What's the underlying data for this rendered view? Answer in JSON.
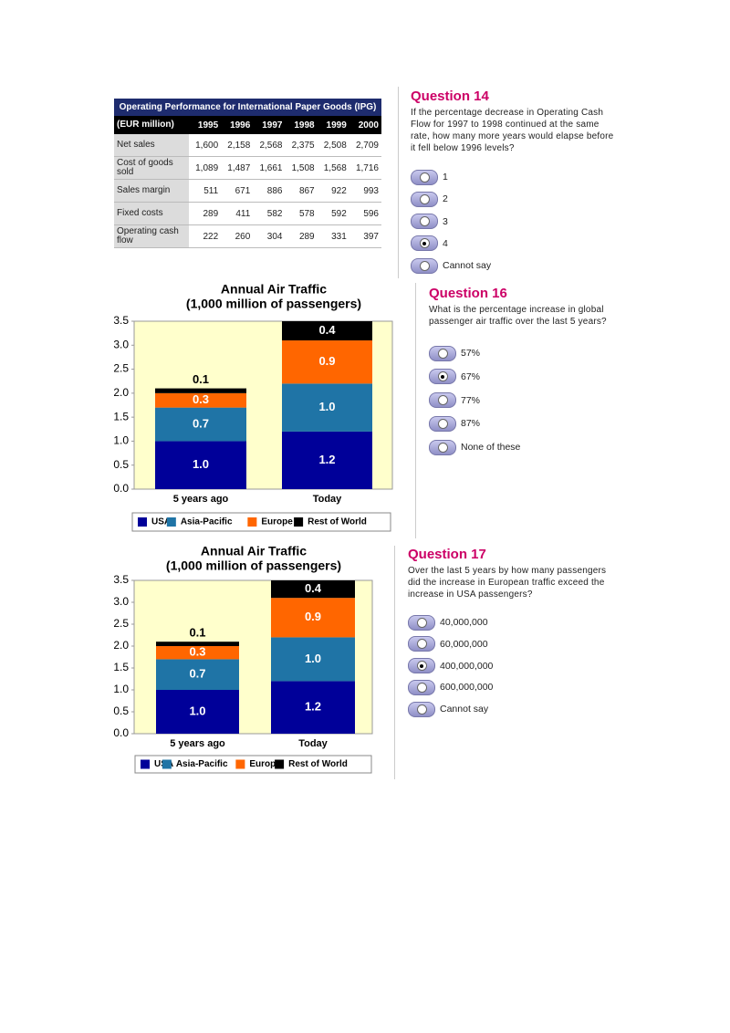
{
  "table": {
    "title": "Operating Performance for International Paper Goods (IPG)",
    "header": [
      "(EUR million)",
      "1995",
      "1996",
      "1997",
      "1998",
      "1999",
      "2000"
    ],
    "rows": [
      [
        "Net sales",
        "1,600",
        "2,158",
        "2,568",
        "2,375",
        "2,508",
        "2,709"
      ],
      [
        "Cost of goods sold",
        "1,089",
        "1,487",
        "1,661",
        "1,508",
        "1,568",
        "1,716"
      ],
      [
        "Sales margin",
        "511",
        "671",
        "886",
        "867",
        "922",
        "993"
      ],
      [
        "Fixed costs",
        "289",
        "411",
        "582",
        "578",
        "592",
        "596"
      ],
      [
        "Operating cash flow",
        "222",
        "260",
        "304",
        "289",
        "331",
        "397"
      ]
    ]
  },
  "questions": [
    {
      "title": "Question 14",
      "text": "If the percentage decrease in Operating Cash Flow for 1997 to 1998 continued at the same rate, how many more years would elapse before it fell below 1996 levels?",
      "options": [
        "1",
        "2",
        "3",
        "4",
        "Cannot say"
      ],
      "selected": 3
    },
    {
      "title": "Question 16",
      "text": "What is the percentage increase in global passenger air traffic over the last 5 years?",
      "options": [
        "57%",
        "67%",
        "77%",
        "87%",
        "None of these"
      ],
      "selected": 1
    },
    {
      "title": "Question 17",
      "text": "Over the last 5 years by how many passengers did the increase in European traffic exceed the increase in USA passengers?",
      "options": [
        "40,000,000",
        "60,000,000",
        "400,000,000",
        "600,000,000",
        "Cannot say"
      ],
      "selected": 2
    }
  ],
  "chart_data": [
    {
      "type": "bar",
      "stacked": true,
      "title": "Annual Air Traffic",
      "subtitle": "(1,000 million of passengers)",
      "categories": [
        "5 years ago",
        "Today"
      ],
      "series": [
        {
          "name": "USA",
          "color": "#000099",
          "values": [
            1,
            1.2
          ],
          "value_labels": [
            "1.0",
            "1.2"
          ]
        },
        {
          "name": "Asia-Pacific",
          "color": "#1f74a6",
          "values": [
            0.7,
            1
          ],
          "value_labels": [
            "0.7",
            "1.0"
          ]
        },
        {
          "name": "Europe",
          "color": "#ff6600",
          "values": [
            0.3,
            0.9
          ]
        },
        {
          "name": "Rest of World",
          "color": "#000000",
          "values": [
            0.1,
            0.4
          ]
        }
      ],
      "ylim": [
        0,
        3.5
      ],
      "yticks": [
        {
          "value": 0,
          "label": "0.0"
        },
        0.5,
        {
          "value": 1,
          "label": "1.0"
        },
        1.5,
        {
          "value": 2,
          "label": "2.0"
        },
        2.5,
        {
          "value": 3,
          "label": "3.0"
        },
        3.5
      ],
      "legend": "bottom",
      "background": "#ffffcc"
    },
    {
      "type": "bar",
      "stacked": true,
      "title": "Annual Air Traffic",
      "subtitle": "(1,000 million of passengers)",
      "categories": [
        "5 years ago",
        "Today"
      ],
      "series": [
        {
          "name": "USA",
          "color": "#000099",
          "values": [
            1,
            1.2
          ],
          "value_labels": [
            "1.0",
            "1.2"
          ]
        },
        {
          "name": "Asia-Pacific",
          "color": "#1f74a6",
          "values": [
            0.7,
            1
          ],
          "value_labels": [
            "0.7",
            "1.0"
          ]
        },
        {
          "name": "Europe",
          "color": "#ff6600",
          "values": [
            0.3,
            0.9
          ]
        },
        {
          "name": "Rest of World",
          "color": "#000000",
          "values": [
            0.1,
            0.4
          ]
        }
      ],
      "ylim": [
        0,
        3.5
      ],
      "yticks": [
        {
          "value": 0,
          "label": "0.0"
        },
        0.5,
        {
          "value": 1,
          "label": "1.0"
        },
        1.5,
        {
          "value": 2,
          "label": "2.0"
        },
        2.5,
        {
          "value": 3,
          "label": "3.0"
        },
        3.5
      ],
      "legend": "bottom",
      "background": "#ffffcc"
    }
  ]
}
